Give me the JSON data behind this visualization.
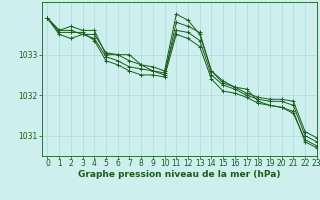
{
  "title": "Graphe pression niveau de la mer (hPa)",
  "background_color": "#cdf0ee",
  "grid_color": "#aadddd",
  "line_color": "#1a5c1a",
  "xlim": [
    -0.5,
    23
  ],
  "ylim": [
    1030.5,
    1034.3
  ],
  "yticks": [
    1031,
    1032,
    1033
  ],
  "xticks": [
    0,
    1,
    2,
    3,
    4,
    5,
    6,
    7,
    8,
    9,
    10,
    11,
    12,
    13,
    14,
    15,
    16,
    17,
    18,
    19,
    20,
    21,
    22,
    23
  ],
  "series": [
    [
      1033.9,
      1033.5,
      1033.4,
      1033.5,
      1033.4,
      1032.95,
      1032.85,
      1032.7,
      1032.65,
      1032.6,
      1032.5,
      1033.8,
      1033.7,
      1033.55,
      1032.6,
      1032.35,
      1032.2,
      1032.15,
      1031.85,
      1031.75,
      1031.7,
      1031.55,
      1030.9,
      1030.75
    ],
    [
      1033.9,
      1033.6,
      1033.6,
      1033.5,
      1033.5,
      1033.05,
      1033.0,
      1032.85,
      1032.75,
      1032.6,
      1032.55,
      1033.6,
      1033.55,
      1033.35,
      1032.5,
      1032.25,
      1032.15,
      1032.0,
      1031.9,
      1031.85,
      1031.85,
      1031.75,
      1031.0,
      1030.85
    ],
    [
      1033.9,
      1033.6,
      1033.7,
      1033.6,
      1033.6,
      1033.0,
      1033.0,
      1033.0,
      1032.75,
      1032.7,
      1032.6,
      1034.0,
      1033.85,
      1033.5,
      1032.6,
      1032.3,
      1032.2,
      1032.05,
      1031.95,
      1031.9,
      1031.9,
      1031.85,
      1031.1,
      1030.95
    ],
    [
      1033.9,
      1033.55,
      1033.55,
      1033.55,
      1033.35,
      1032.85,
      1032.75,
      1032.6,
      1032.5,
      1032.5,
      1032.45,
      1033.5,
      1033.4,
      1033.2,
      1032.4,
      1032.1,
      1032.05,
      1031.95,
      1031.8,
      1031.75,
      1031.7,
      1031.6,
      1030.85,
      1030.7
    ]
  ],
  "tick_fontsize": 5.5,
  "title_fontsize": 6.5
}
